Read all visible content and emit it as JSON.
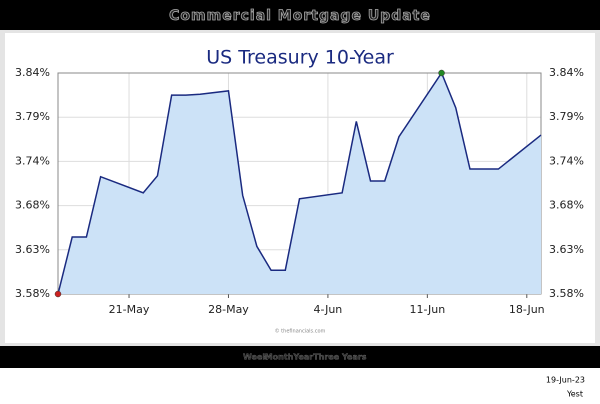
{
  "header": {
    "title": "Commercial Mortgage Update"
  },
  "chart_data": {
    "type": "area",
    "title": "US Treasury 10-Year",
    "source": "© thefinancials.com",
    "x": [
      "16-May",
      "17-May",
      "18-May",
      "19-May",
      "22-May",
      "23-May",
      "24-May",
      "25-May",
      "26-May",
      "28-May",
      "29-May",
      "30-May",
      "31-May",
      "1-Jun",
      "2-Jun",
      "5-Jun",
      "6-Jun",
      "7-Jun",
      "8-Jun",
      "9-Jun",
      "12-Jun",
      "13-Jun",
      "14-Jun",
      "16-Jun",
      "19-Jun"
    ],
    "series": [
      {
        "name": "US Treasury 10-Year",
        "color": "#1a2a80",
        "fill": "#cce2f7",
        "values": [
          3.58,
          3.647,
          3.647,
          3.718,
          3.699,
          3.719,
          3.814,
          3.814,
          3.815,
          3.819,
          3.696,
          3.636,
          3.608,
          3.608,
          3.692,
          3.699,
          3.783,
          3.713,
          3.713,
          3.765,
          3.84,
          3.799,
          3.727,
          3.727,
          3.767
        ]
      }
    ],
    "low_marker_color": "#cc2222",
    "high_marker_color": "#228822",
    "xlim": [
      "16-May",
      "19-Jun"
    ],
    "xticks": [
      "21-May",
      "28-May",
      "4-Jun",
      "11-Jun",
      "18-Jun"
    ],
    "ylim": [
      3.58,
      3.84
    ],
    "yticks": [
      {
        "value": 3.58,
        "label": "3.58%"
      },
      {
        "value": 3.632,
        "label": "3.63%"
      },
      {
        "value": 3.684,
        "label": "3.68%"
      },
      {
        "value": 3.736,
        "label": "3.74%"
      },
      {
        "value": 3.788,
        "label": "3.79%"
      },
      {
        "value": 3.84,
        "label": "3.84%"
      }
    ],
    "grid": true
  },
  "footer": {
    "tabs": [
      "Week",
      "Month",
      "Year",
      "Three Years"
    ],
    "date": "19-Jun-23",
    "label": "Yest"
  }
}
